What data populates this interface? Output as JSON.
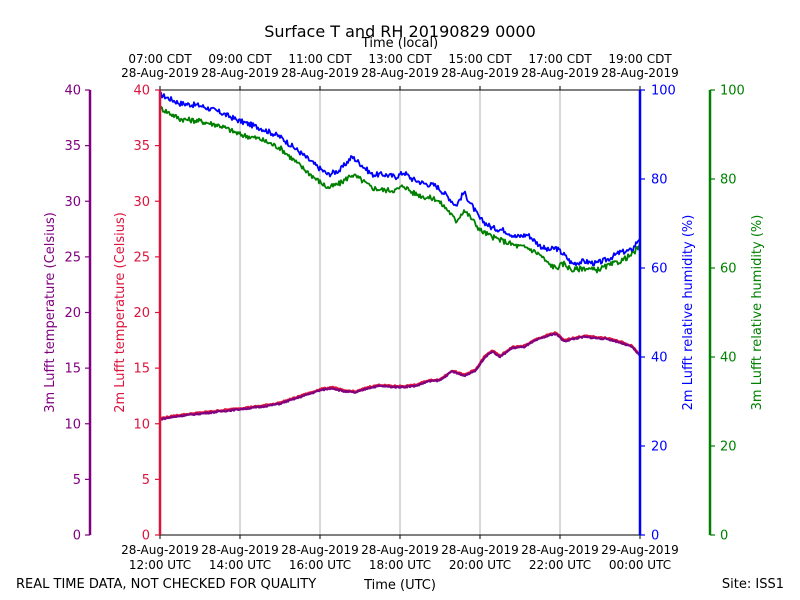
{
  "chart_data": {
    "type": "line",
    "title": "Surface T and RH 20190829 0000",
    "top_axis_title": "Time (local)",
    "bottom_axis_title": "Time (UTC)",
    "footer_left": "REAL TIME DATA, NOT CHECKED FOR QUALITY",
    "footer_right": "Site: ISS1",
    "x_range_hours_utc": [
      12,
      24
    ],
    "bottom_ticks": [
      {
        "hour": 12,
        "line1": "28-Aug-2019",
        "line2": "12:00 UTC"
      },
      {
        "hour": 14,
        "line1": "28-Aug-2019",
        "line2": "14:00 UTC"
      },
      {
        "hour": 16,
        "line1": "28-Aug-2019",
        "line2": "16:00 UTC"
      },
      {
        "hour": 18,
        "line1": "28-Aug-2019",
        "line2": "18:00 UTC"
      },
      {
        "hour": 20,
        "line1": "28-Aug-2019",
        "line2": "20:00 UTC"
      },
      {
        "hour": 22,
        "line1": "28-Aug-2019",
        "line2": "22:00 UTC"
      },
      {
        "hour": 24,
        "line1": "29-Aug-2019",
        "line2": "00:00 UTC"
      }
    ],
    "top_ticks": [
      {
        "hour": 12,
        "line1": "07:00 CDT",
        "line2": "28-Aug-2019"
      },
      {
        "hour": 14,
        "line1": "09:00 CDT",
        "line2": "28-Aug-2019"
      },
      {
        "hour": 16,
        "line1": "11:00 CDT",
        "line2": "28-Aug-2019"
      },
      {
        "hour": 18,
        "line1": "13:00 CDT",
        "line2": "28-Aug-2019"
      },
      {
        "hour": 20,
        "line1": "15:00 CDT",
        "line2": "28-Aug-2019"
      },
      {
        "hour": 22,
        "line1": "17:00 CDT",
        "line2": "28-Aug-2019"
      },
      {
        "hour": 24,
        "line1": "19:00 CDT",
        "line2": "28-Aug-2019"
      }
    ],
    "axes": {
      "t3m": {
        "label": "3m Lufft temperature (Celsius)",
        "color": "#800080",
        "range": [
          0,
          40
        ],
        "ticks": [
          0,
          5,
          10,
          15,
          20,
          25,
          30,
          35,
          40
        ]
      },
      "t2m": {
        "label": "2m Lufft temperature (Celsius)",
        "color": "#dc143c",
        "range": [
          0,
          40
        ],
        "ticks": [
          0,
          5,
          10,
          15,
          20,
          25,
          30,
          35,
          40
        ]
      },
      "rh2m": {
        "label": "2m Lufft relative humidity (%)",
        "color": "#0000ff",
        "range": [
          0,
          100
        ],
        "ticks": [
          0,
          20,
          40,
          60,
          80,
          100
        ]
      },
      "rh3m": {
        "label": "3m Lufft relative humidity (%)",
        "color": "#008000",
        "range": [
          0,
          100
        ],
        "ticks": [
          0,
          20,
          40,
          60,
          80,
          100
        ]
      }
    },
    "series": [
      {
        "name": "2m Lufft relative humidity",
        "axis": "rh2m",
        "color": "#0000ff",
        "x": [
          12.0,
          12.5,
          13.0,
          13.5,
          14.0,
          14.5,
          15.0,
          15.5,
          15.9,
          16.2,
          16.5,
          16.8,
          17.0,
          17.3,
          17.6,
          17.9,
          18.1,
          18.3,
          18.6,
          18.9,
          19.2,
          19.4,
          19.6,
          19.8,
          20.0,
          20.3,
          20.6,
          20.9,
          21.2,
          21.5,
          21.7,
          21.9,
          22.1,
          22.3,
          22.6,
          22.9,
          23.2,
          23.5,
          23.8,
          24.0
        ],
        "y": [
          99,
          97,
          96.5,
          95,
          93,
          91.5,
          89.5,
          86,
          83,
          81,
          82,
          85,
          83.5,
          81,
          81,
          80.5,
          81.5,
          80,
          79,
          78.5,
          76,
          74,
          77,
          74,
          71,
          69,
          68.5,
          67,
          67.5,
          65,
          64,
          64.5,
          63,
          61,
          61.5,
          61,
          62,
          63.5,
          64,
          67
        ]
      },
      {
        "name": "3m Lufft relative humidity",
        "axis": "rh3m",
        "color": "#008000",
        "x": [
          12.0,
          12.5,
          13.0,
          13.5,
          14.0,
          14.5,
          15.0,
          15.5,
          15.9,
          16.2,
          16.5,
          16.8,
          17.0,
          17.3,
          17.6,
          17.9,
          18.1,
          18.3,
          18.6,
          18.9,
          19.2,
          19.4,
          19.6,
          19.8,
          20.0,
          20.3,
          20.6,
          20.9,
          21.2,
          21.5,
          21.7,
          21.9,
          22.1,
          22.3,
          22.6,
          22.9,
          23.2,
          23.5,
          23.8,
          24.0
        ],
        "y": [
          96,
          93.5,
          93,
          92,
          90,
          89,
          87,
          83,
          80,
          78,
          79,
          81,
          80,
          78,
          77.5,
          77.5,
          78.5,
          77,
          76,
          75.5,
          73,
          70.5,
          73,
          71,
          68.5,
          67,
          66,
          65,
          64.5,
          63,
          61,
          60,
          61,
          59.5,
          60,
          59.5,
          60.5,
          61.5,
          63,
          65
        ]
      },
      {
        "name": "2m Lufft temperature",
        "axis": "t2m",
        "color": "#dc143c",
        "x": [
          12.0,
          12.5,
          13.0,
          13.5,
          14.0,
          14.5,
          15.0,
          15.5,
          16.0,
          16.3,
          16.6,
          16.9,
          17.2,
          17.5,
          17.8,
          18.1,
          18.4,
          18.7,
          19.0,
          19.3,
          19.6,
          19.9,
          20.1,
          20.3,
          20.5,
          20.8,
          21.1,
          21.4,
          21.7,
          21.9,
          22.1,
          22.3,
          22.6,
          22.9,
          23.2,
          23.5,
          23.8,
          24.0
        ],
        "y": [
          10.5,
          10.8,
          11.0,
          11.2,
          11.4,
          11.6,
          11.9,
          12.5,
          13.1,
          13.3,
          13.0,
          12.9,
          13.3,
          13.5,
          13.4,
          13.4,
          13.5,
          13.9,
          14.0,
          14.8,
          14.4,
          14.9,
          16.0,
          16.6,
          16.1,
          16.9,
          17.0,
          17.6,
          18.0,
          18.2,
          17.5,
          17.7,
          17.9,
          17.8,
          17.7,
          17.4,
          17.0,
          16.2
        ]
      },
      {
        "name": "3m Lufft temperature",
        "axis": "t3m",
        "color": "#800080",
        "x": [
          12.0,
          12.5,
          13.0,
          13.5,
          14.0,
          14.5,
          15.0,
          15.5,
          16.0,
          16.3,
          16.6,
          16.9,
          17.2,
          17.5,
          17.8,
          18.1,
          18.4,
          18.7,
          19.0,
          19.3,
          19.6,
          19.9,
          20.1,
          20.3,
          20.5,
          20.8,
          21.1,
          21.4,
          21.7,
          21.9,
          22.1,
          22.3,
          22.6,
          22.9,
          23.2,
          23.5,
          23.8,
          24.0
        ],
        "y": [
          10.4,
          10.7,
          10.9,
          11.1,
          11.3,
          11.5,
          11.8,
          12.4,
          13.0,
          13.2,
          12.9,
          12.8,
          13.2,
          13.4,
          13.3,
          13.3,
          13.4,
          13.8,
          13.9,
          14.7,
          14.3,
          14.8,
          15.9,
          16.5,
          16.0,
          16.8,
          16.9,
          17.5,
          17.9,
          18.1,
          17.4,
          17.6,
          17.8,
          17.7,
          17.6,
          17.3,
          16.9,
          16.1
        ]
      }
    ]
  }
}
